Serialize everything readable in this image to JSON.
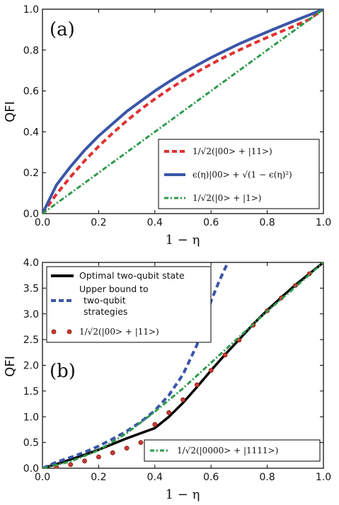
{
  "chart_data": [
    {
      "type": "line",
      "panel": "(a)",
      "xlabel": "1 − η",
      "ylabel": "QFI",
      "xlim": [
        0,
        1
      ],
      "ylim": [
        0,
        1
      ],
      "xticks": [
        "0.0",
        "0.2",
        "0.4",
        "0.6",
        "0.8",
        "1.0"
      ],
      "yticks": [
        "0.0",
        "0.2",
        "0.4",
        "0.6",
        "0.8",
        "1.0"
      ],
      "legend_position": "bottom-right",
      "series": [
        {
          "name": "1/√2(|00> + |11>)",
          "style": "dashed",
          "color": "#e03030",
          "x": [
            0,
            0.05,
            0.1,
            0.15,
            0.2,
            0.25,
            0.3,
            0.35,
            0.4,
            0.45,
            0.5,
            0.55,
            0.6,
            0.65,
            0.7,
            0.75,
            0.8,
            0.85,
            0.9,
            0.95,
            1.0
          ],
          "y": [
            0,
            0.095,
            0.18,
            0.258,
            0.329,
            0.394,
            0.454,
            0.51,
            0.561,
            0.608,
            0.652,
            0.693,
            0.731,
            0.767,
            0.8,
            0.832,
            0.862,
            0.891,
            0.92,
            0.95,
            1.0
          ]
        },
        {
          "name": "ϵ(η)|00> + √(1 − ϵ(η)²)",
          "style": "solid",
          "color": "#3a56a8",
          "x": [
            0,
            0.05,
            0.1,
            0.15,
            0.2,
            0.25,
            0.3,
            0.35,
            0.4,
            0.45,
            0.5,
            0.55,
            0.6,
            0.65,
            0.7,
            0.75,
            0.8,
            0.85,
            0.9,
            0.95,
            1.0
          ],
          "y": [
            0,
            0.14,
            0.23,
            0.31,
            0.38,
            0.44,
            0.5,
            0.55,
            0.6,
            0.645,
            0.687,
            0.726,
            0.763,
            0.797,
            0.83,
            0.86,
            0.889,
            0.917,
            0.945,
            0.972,
            1.0
          ]
        },
        {
          "name": "1/√2(|0> + |1>)",
          "style": "dashdot",
          "color": "#2e9a4a",
          "x": [
            0,
            1
          ],
          "y": [
            0,
            1
          ]
        }
      ]
    },
    {
      "type": "line",
      "panel": "(b)",
      "xlabel": "1 − η",
      "ylabel": "QFI",
      "xlim": [
        0,
        1
      ],
      "ylim": [
        0,
        4
      ],
      "xticks": [
        "0.0",
        "0.2",
        "0.4",
        "0.6",
        "0.8",
        "1.0"
      ],
      "yticks": [
        "0.0",
        "0.5",
        "1.0",
        "1.5",
        "2.0",
        "2.5",
        "3.0",
        "3.5",
        "4.0"
      ],
      "legend_position": "top-left",
      "series": [
        {
          "name": "Optimal two-qubit state",
          "style": "solid",
          "color": "#000000",
          "x": [
            0,
            0.05,
            0.1,
            0.15,
            0.2,
            0.25,
            0.3,
            0.35,
            0.4,
            0.45,
            0.5,
            0.55,
            0.6,
            0.65,
            0.7,
            0.75,
            0.8,
            0.85,
            0.9,
            0.95,
            1.0
          ],
          "y": [
            0,
            0.08,
            0.17,
            0.26,
            0.36,
            0.47,
            0.58,
            0.68,
            0.78,
            1.0,
            1.27,
            1.58,
            1.9,
            2.21,
            2.5,
            2.8,
            3.07,
            3.32,
            3.56,
            3.78,
            4.0
          ]
        },
        {
          "name": "Upper bound to two-qubit strategies",
          "style": "dashed",
          "color": "#3a56a8",
          "x": [
            0,
            0.05,
            0.1,
            0.15,
            0.2,
            0.25,
            0.3,
            0.35,
            0.4,
            0.45,
            0.5,
            0.55,
            0.6,
            0.63,
            0.66
          ],
          "y": [
            0,
            0.12,
            0.21,
            0.31,
            0.43,
            0.57,
            0.72,
            0.9,
            1.12,
            1.42,
            1.82,
            2.4,
            3.25,
            3.65,
            4.0
          ]
        },
        {
          "name": "1/√2(|00> + |11>)",
          "style": "markers",
          "color": "#cc3a30",
          "x": [
            0.05,
            0.1,
            0.15,
            0.2,
            0.25,
            0.3,
            0.35,
            0.4,
            0.45,
            0.5,
            0.55,
            0.6,
            0.65,
            0.7,
            0.75,
            0.8,
            0.85,
            0.9,
            0.95,
            1.0
          ],
          "y": [
            0.02,
            0.07,
            0.14,
            0.22,
            0.3,
            0.39,
            0.5,
            0.85,
            1.08,
            1.33,
            1.62,
            1.9,
            2.2,
            2.49,
            2.78,
            3.06,
            3.31,
            3.55,
            3.78,
            4.0
          ]
        },
        {
          "name": "1/√2(|0000> + |1111>)",
          "style": "dashdot",
          "color": "#2e9a4a",
          "x": [
            0,
            0.1,
            0.2,
            0.3,
            0.4,
            0.5,
            0.6,
            0.7,
            0.8,
            0.9,
            1.0
          ],
          "y": [
            0,
            0.13,
            0.35,
            0.68,
            1.1,
            1.55,
            2.05,
            2.55,
            3.05,
            3.52,
            4.0
          ]
        }
      ]
    }
  ],
  "panels": [
    {
      "tag": "(a)",
      "ylabel": "QFI",
      "xlabel": "1 − η",
      "legend": {
        "entries": [
          "1/√2(|00> + |11>)",
          "ϵ(η)|00> + √(1 − ϵ(η)²)",
          "1/√2(|0> + |1>)"
        ]
      }
    },
    {
      "tag": "(b)",
      "ylabel": "QFI",
      "xlabel": "1 − η",
      "legend": {
        "entries": [
          "Optimal two-qubit state",
          "Upper bound to",
          "two-qubit",
          "strategies",
          "1/√2(|00> + |11>)"
        ],
        "bottom_entry": "1/√2(|0000> + |1111>)"
      }
    }
  ]
}
